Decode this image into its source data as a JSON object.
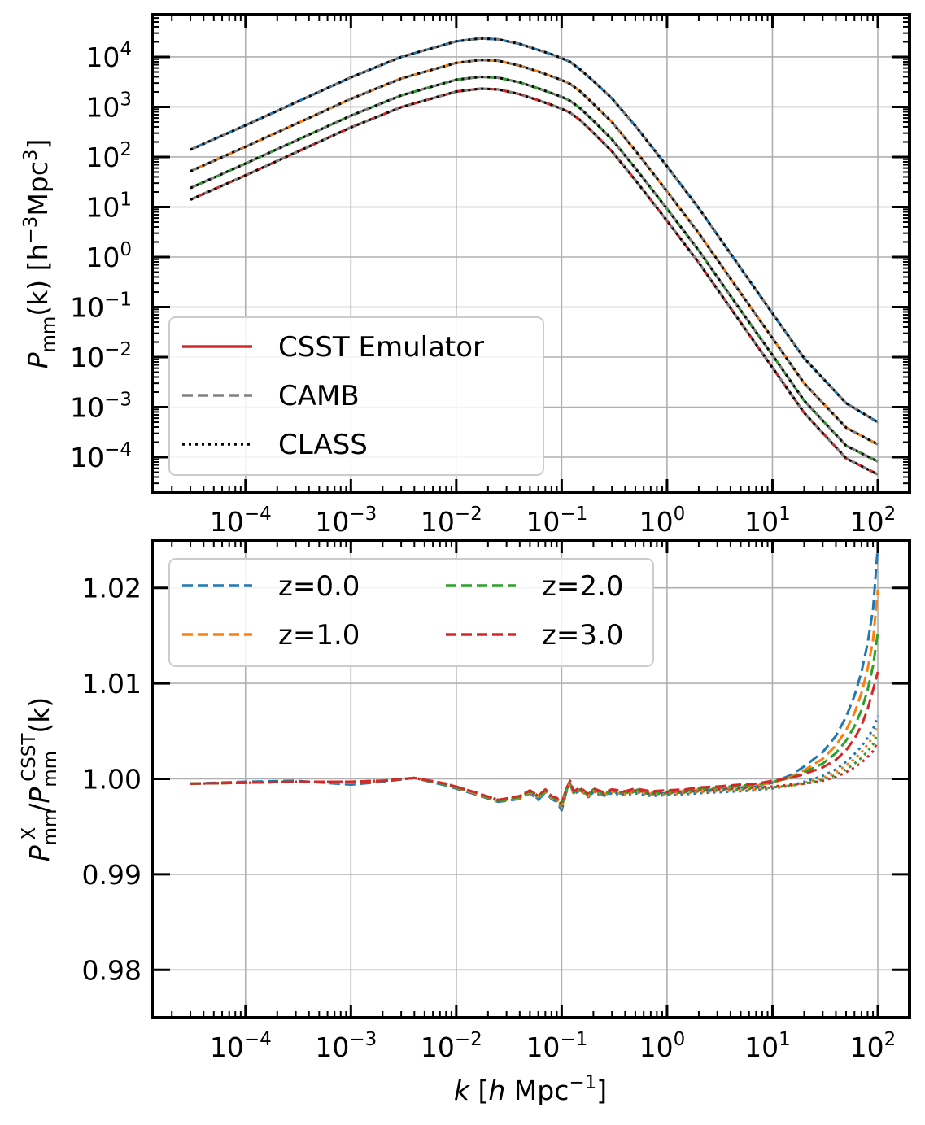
{
  "chart_data": [
    {
      "type": "line",
      "panel": "top",
      "ylabel": {
        "base": "P",
        "sub": "mm",
        "rest1": "(k) [h",
        "sup1": "−3",
        "rest2": "Mpc",
        "sup2": "3",
        "rest3": "]"
      },
      "xscale": "log",
      "yscale": "log",
      "xlim": [
        1.3e-05,
        200
      ],
      "ylim": [
        2e-05,
        70000
      ],
      "grid": true,
      "x_ticks": [
        {
          "base": "10",
          "exp": "−4",
          "value": 0.0001
        },
        {
          "base": "10",
          "exp": "−3",
          "value": 0.001
        },
        {
          "base": "10",
          "exp": "−2",
          "value": 0.01
        },
        {
          "base": "10",
          "exp": "−1",
          "value": 0.1
        },
        {
          "base": "10",
          "exp": "0",
          "value": 1
        },
        {
          "base": "10",
          "exp": "1",
          "value": 10
        },
        {
          "base": "10",
          "exp": "2",
          "value": 100
        }
      ],
      "y_ticks": [
        {
          "base": "10",
          "exp": "4",
          "value": 10000
        },
        {
          "base": "10",
          "exp": "3",
          "value": 1000
        },
        {
          "base": "10",
          "exp": "2",
          "value": 100
        },
        {
          "base": "10",
          "exp": "1",
          "value": 10
        },
        {
          "base": "10",
          "exp": "0",
          "value": 1
        },
        {
          "base": "10",
          "exp": "−1",
          "value": 0.1
        },
        {
          "base": "10",
          "exp": "−2",
          "value": 0.01
        },
        {
          "base": "10",
          "exp": "−3",
          "value": 0.001
        },
        {
          "base": "10",
          "exp": "−4",
          "value": 0.0001
        }
      ],
      "legend": {
        "position": "lower-left",
        "entries": [
          {
            "label": "CSST Emulator",
            "color": "#d62728",
            "style": "solid"
          },
          {
            "label": "CAMB",
            "color": "#808080",
            "style": "dashed"
          },
          {
            "label": "CLASS",
            "color": "#000000",
            "style": "dotted"
          }
        ]
      },
      "x": [
        3e-05,
        0.0001,
        0.001,
        0.003,
        0.01,
        0.017,
        0.025,
        0.04,
        0.06,
        0.08,
        0.1,
        0.12,
        0.15,
        0.2,
        0.3,
        0.5,
        1,
        2,
        5,
        10,
        20,
        50,
        100
      ],
      "series": [
        {
          "name": "z=0.0",
          "color": "#1f77b4",
          "values": [
            140,
            430,
            3900,
            10000,
            20500,
            23500,
            22500,
            18200,
            13800,
            11300,
            9400,
            8000,
            5600,
            3300,
            1480,
            420,
            65,
            9.5,
            0.6,
            0.075,
            0.0095,
            0.0012,
            0.0005
          ]
        },
        {
          "name": "z=1.0",
          "color": "#ff7f0e",
          "values": [
            52,
            160,
            1450,
            3700,
            7600,
            8700,
            8400,
            6700,
            5100,
            4100,
            3450,
            2900,
            2050,
            1150,
            500,
            135,
            20.5,
            3.0,
            0.19,
            0.024,
            0.003,
            0.00039,
            0.00018
          ]
        },
        {
          "name": "z=2.0",
          "color": "#2ca02c",
          "values": [
            24,
            74,
            670,
            1700,
            3500,
            4000,
            3850,
            3100,
            2350,
            1890,
            1590,
            1330,
            940,
            530,
            225,
            60,
            9.2,
            1.35,
            0.086,
            0.011,
            0.00135,
            0.00017,
            8.2e-05
          ]
        },
        {
          "name": "z=3.0",
          "color": "#d62728",
          "values": [
            14,
            43,
            390,
            990,
            2030,
            2320,
            2240,
            1800,
            1360,
            1100,
            920,
            770,
            545,
            305,
            130,
            34.5,
            5.3,
            0.77,
            0.049,
            0.0062,
            0.00077,
            9.5e-05,
            4.5e-05
          ]
        }
      ]
    },
    {
      "type": "line",
      "panel": "bottom",
      "xlabel": {
        "pre": "k",
        "mid": " [",
        "h": "h",
        "unit": " Mpc",
        "sup": "−1",
        "post": "]"
      },
      "ylabel": {
        "p1": "P",
        "sub1": "mm",
        "sup1": "X",
        "slash": "/",
        "p2": "P",
        "sub2": "mm",
        "sup2": "CSST",
        "post": "(k)"
      },
      "xscale": "log",
      "xlim": [
        1.3e-05,
        200
      ],
      "ylim": [
        0.975,
        1.025
      ],
      "grid": true,
      "x_ticks": [
        {
          "base": "10",
          "exp": "−4",
          "value": 0.0001
        },
        {
          "base": "10",
          "exp": "−3",
          "value": 0.001
        },
        {
          "base": "10",
          "exp": "−2",
          "value": 0.01
        },
        {
          "base": "10",
          "exp": "−1",
          "value": 0.1
        },
        {
          "base": "10",
          "exp": "0",
          "value": 1
        },
        {
          "base": "10",
          "exp": "1",
          "value": 10
        },
        {
          "base": "10",
          "exp": "2",
          "value": 100
        }
      ],
      "y_ticks": [
        {
          "label": "1.02",
          "value": 1.02
        },
        {
          "label": "1.01",
          "value": 1.01
        },
        {
          "label": "1.00",
          "value": 1.0
        },
        {
          "label": "0.99",
          "value": 0.99
        },
        {
          "label": "0.98",
          "value": 0.98
        }
      ],
      "legend": {
        "position": "upper-left",
        "entries": [
          {
            "label": "z=0.0",
            "color": "#1f77b4"
          },
          {
            "label": "z=1.0",
            "color": "#ff7f0e"
          },
          {
            "label": "z=2.0",
            "color": "#2ca02c"
          },
          {
            "label": "z=3.0",
            "color": "#d62728"
          }
        ]
      },
      "x": [
        3e-05,
        0.0001,
        0.0003,
        0.001,
        0.002,
        0.004,
        0.008,
        0.015,
        0.025,
        0.04,
        0.05,
        0.06,
        0.07,
        0.08,
        0.09,
        0.1,
        0.11,
        0.12,
        0.13,
        0.15,
        0.18,
        0.2,
        0.25,
        0.3,
        0.4,
        0.5,
        0.7,
        1,
        1.5,
        2,
        3,
        5,
        7,
        10,
        15,
        20,
        30,
        40,
        50,
        60,
        70,
        80,
        90,
        100
      ],
      "series": [
        {
          "name": "CAMB z=0.0",
          "color": "#1f77b4",
          "style": "dashed",
          "values": [
            0.9995,
            0.9997,
            0.9998,
            0.9994,
            0.9997,
            1.0001,
            0.9993,
            0.9984,
            0.9976,
            0.9979,
            0.9985,
            0.9978,
            0.9986,
            0.9979,
            0.9976,
            0.9967,
            0.9985,
            0.9995,
            0.9984,
            0.9988,
            0.9981,
            0.9987,
            0.9983,
            0.9986,
            0.9984,
            0.9987,
            0.9984,
            0.9985,
            0.9986,
            0.9988,
            0.9989,
            0.9991,
            0.9992,
            0.9996,
            1.0004,
            1.0013,
            1.0028,
            1.0045,
            1.0065,
            1.0087,
            1.0112,
            1.0142,
            1.0177,
            1.0243
          ]
        },
        {
          "name": "CAMB z=1.0",
          "color": "#ff7f0e",
          "style": "dashed",
          "values": [
            0.9995,
            0.9996,
            0.9997,
            0.9996,
            0.9998,
            1.0001,
            0.9994,
            0.9985,
            0.9977,
            0.998,
            0.9986,
            0.998,
            0.9987,
            0.998,
            0.9978,
            0.997,
            0.9987,
            0.9996,
            0.9985,
            0.9989,
            0.9982,
            0.9988,
            0.9984,
            0.9987,
            0.9985,
            0.9988,
            0.9985,
            0.9986,
            0.9987,
            0.9989,
            0.999,
            0.9992,
            0.9993,
            0.9996,
            1.0002,
            1.0009,
            1.0021,
            1.0035,
            1.0051,
            1.0069,
            1.009,
            1.0115,
            1.0145,
            1.0198
          ]
        },
        {
          "name": "CAMB z=2.0",
          "color": "#2ca02c",
          "style": "dashed",
          "values": [
            0.9995,
            0.9996,
            0.9997,
            0.9997,
            0.9998,
            1.0001,
            0.9994,
            0.9986,
            0.9977,
            0.9981,
            0.9987,
            0.9981,
            0.9988,
            0.9981,
            0.9979,
            0.9972,
            0.9988,
            0.9997,
            0.9986,
            0.999,
            0.9983,
            0.9989,
            0.9985,
            0.9988,
            0.9986,
            0.9989,
            0.9986,
            0.9987,
            0.9988,
            0.999,
            0.9991,
            0.9993,
            0.9994,
            0.9997,
            1.0001,
            1.0007,
            1.0016,
            1.0027,
            1.004,
            1.0055,
            1.0072,
            1.0093,
            1.0118,
            1.0153
          ]
        },
        {
          "name": "CAMB z=3.0",
          "color": "#d62728",
          "style": "dashed",
          "values": [
            0.9995,
            0.9996,
            0.9997,
            0.9997,
            0.9998,
            1.0001,
            0.9995,
            0.9986,
            0.9978,
            0.9982,
            0.9988,
            0.9982,
            0.9989,
            0.9982,
            0.998,
            0.9974,
            0.9989,
            0.9998,
            0.9987,
            0.9991,
            0.9984,
            0.999,
            0.9986,
            0.9989,
            0.9987,
            0.999,
            0.9987,
            0.9988,
            0.9989,
            0.9991,
            0.9992,
            0.9994,
            0.9995,
            0.9998,
            1.0001,
            1.0005,
            1.0012,
            1.002,
            1.003,
            1.0042,
            1.0056,
            1.0073,
            1.0093,
            1.0112
          ]
        },
        {
          "name": "CLASS z=0.0",
          "color": "#1f77b4",
          "style": "dotted",
          "values": [
            0.9995,
            0.9996,
            0.9997,
            0.9997,
            0.9998,
            1.0001,
            0.9994,
            0.9985,
            0.9977,
            0.998,
            0.9985,
            0.9979,
            0.9987,
            0.998,
            0.9977,
            0.9969,
            0.9986,
            0.9995,
            0.9984,
            0.9988,
            0.9981,
            0.9986,
            0.9982,
            0.9985,
            0.9983,
            0.9985,
            0.9982,
            0.9983,
            0.9984,
            0.9985,
            0.9986,
            0.9987,
            0.9988,
            0.999,
            0.9993,
            0.9997,
            1.0003,
            1.001,
            1.0018,
            1.0026,
            1.0034,
            1.0043,
            1.0052,
            1.0066
          ]
        },
        {
          "name": "CLASS z=1.0",
          "color": "#ff7f0e",
          "style": "dotted",
          "values": [
            0.9995,
            0.9996,
            0.9997,
            0.9997,
            0.9998,
            1.0001,
            0.9994,
            0.9985,
            0.9977,
            0.998,
            0.9986,
            0.998,
            0.9987,
            0.998,
            0.9978,
            0.997,
            0.9987,
            0.9996,
            0.9985,
            0.9988,
            0.9982,
            0.9987,
            0.9983,
            0.9986,
            0.9984,
            0.9986,
            0.9983,
            0.9984,
            0.9985,
            0.9986,
            0.9987,
            0.9988,
            0.9989,
            0.9991,
            0.9993,
            0.9996,
            1.0001,
            1.0007,
            1.0014,
            1.0021,
            1.0028,
            1.0036,
            1.0044,
            1.0057
          ]
        },
        {
          "name": "CLASS z=2.0",
          "color": "#2ca02c",
          "style": "dotted",
          "values": [
            0.9995,
            0.9996,
            0.9997,
            0.9997,
            0.9998,
            1.0001,
            0.9994,
            0.9986,
            0.9977,
            0.9981,
            0.9987,
            0.9981,
            0.9988,
            0.9981,
            0.9979,
            0.9972,
            0.9988,
            0.9997,
            0.9986,
            0.9989,
            0.9983,
            0.9988,
            0.9984,
            0.9987,
            0.9985,
            0.9987,
            0.9984,
            0.9985,
            0.9986,
            0.9987,
            0.9988,
            0.9989,
            0.999,
            0.9991,
            0.9993,
            0.9995,
            0.9999,
            1.0004,
            1.001,
            1.0016,
            1.0022,
            1.0029,
            1.0036,
            1.0048
          ]
        },
        {
          "name": "CLASS z=3.0",
          "color": "#d62728",
          "style": "dotted",
          "values": [
            0.9995,
            0.9996,
            0.9997,
            0.9997,
            0.9998,
            1.0001,
            0.9995,
            0.9986,
            0.9978,
            0.9982,
            0.9988,
            0.9982,
            0.9989,
            0.9982,
            0.998,
            0.9974,
            0.9989,
            0.9998,
            0.9987,
            0.999,
            0.9984,
            0.9989,
            0.9985,
            0.9988,
            0.9986,
            0.9988,
            0.9985,
            0.9986,
            0.9987,
            0.9988,
            0.9989,
            0.999,
            0.9991,
            0.9992,
            0.9994,
            0.9995,
            0.9998,
            1.0002,
            1.0007,
            1.0012,
            1.0017,
            1.0023,
            1.0029,
            1.0039
          ]
        }
      ]
    }
  ]
}
